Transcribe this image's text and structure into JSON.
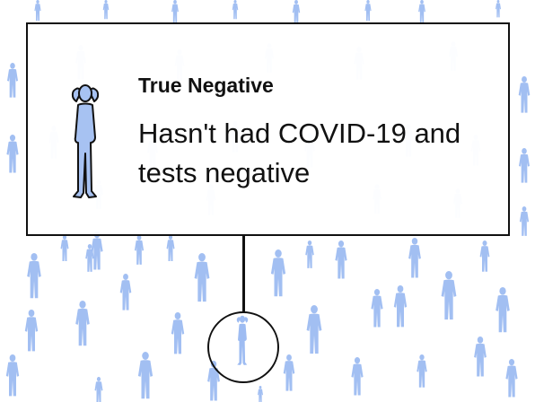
{
  "card": {
    "label": "True Negative",
    "description": "Hasn't had COVID-19 and tests negative"
  },
  "colors": {
    "figure_fill": "#a7c2f2",
    "crowd_fill": "#9ebcf2",
    "outline": "#111111",
    "background": "#ffffff"
  },
  "icons": {
    "card_figure": "person-hands-on-head-icon",
    "highlighted_figure": "person-hands-on-head-icon",
    "crowd": "person-icon"
  }
}
